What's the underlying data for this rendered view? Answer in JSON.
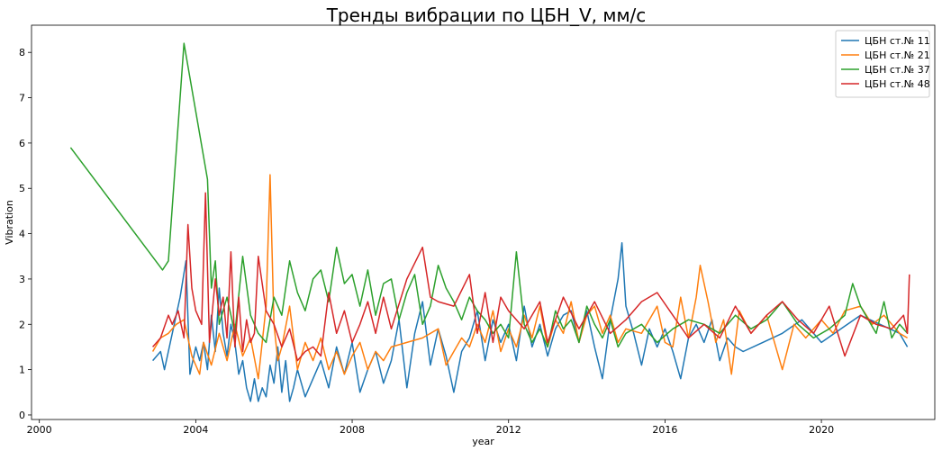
{
  "chart_data": {
    "type": "line",
    "title": "Тренды вибрации по ЦБН_V, мм/с",
    "xlabel": "year",
    "ylabel": "Vibration",
    "xlim": [
      1999.8,
      2022.9
    ],
    "ylim": [
      -0.1,
      8.6
    ],
    "xticks": [
      2000,
      2004,
      2008,
      2012,
      2016,
      2020
    ],
    "yticks": [
      0,
      1,
      2,
      3,
      4,
      5,
      6,
      7,
      8
    ],
    "grid": false,
    "legend_position": "top-right",
    "series": [
      {
        "name": "ЦБН ст.№ 11",
        "color": "#1f77b4",
        "x": [
          2002.9,
          2003.1,
          2003.2,
          2003.4,
          2003.6,
          2003.75,
          2003.85,
          2004.0,
          2004.1,
          2004.2,
          2004.3,
          2004.4,
          2004.5,
          2004.6,
          2004.7,
          2004.8,
          2004.9,
          2005.0,
          2005.1,
          2005.2,
          2005.3,
          2005.4,
          2005.5,
          2005.6,
          2005.7,
          2005.8,
          2005.9,
          2006.0,
          2006.1,
          2006.2,
          2006.3,
          2006.4,
          2006.5,
          2006.6,
          2006.8,
          2007.0,
          2007.2,
          2007.4,
          2007.6,
          2007.8,
          2008.0,
          2008.2,
          2008.4,
          2008.6,
          2008.8,
          2009.0,
          2009.2,
          2009.4,
          2009.6,
          2009.8,
          2010.0,
          2010.2,
          2010.4,
          2010.6,
          2010.8,
          2011.0,
          2011.2,
          2011.4,
          2011.6,
          2011.8,
          2012.0,
          2012.2,
          2012.4,
          2012.6,
          2012.8,
          2013.0,
          2013.2,
          2013.4,
          2013.6,
          2013.8,
          2014.0,
          2014.2,
          2014.4,
          2014.6,
          2014.8,
          2014.9,
          2015.0,
          2015.2,
          2015.4,
          2015.6,
          2015.8,
          2016.0,
          2016.2,
          2016.4,
          2016.6,
          2016.8,
          2017.0,
          2017.2,
          2017.4,
          2017.6,
          2017.8,
          2018.0,
          2018.5,
          2019.0,
          2019.5,
          2020.0,
          2020.5,
          2021.0,
          2021.5,
          2022.0,
          2022.2
        ],
        "y": [
          1.2,
          1.4,
          1.0,
          1.8,
          2.6,
          3.4,
          0.9,
          1.5,
          1.2,
          1.6,
          1.0,
          2.2,
          1.4,
          2.8,
          1.8,
          1.3,
          2.0,
          1.6,
          0.9,
          1.2,
          0.6,
          0.3,
          0.8,
          0.3,
          0.6,
          0.4,
          1.1,
          0.7,
          1.5,
          0.5,
          1.2,
          0.3,
          0.6,
          1.0,
          0.4,
          0.8,
          1.2,
          0.6,
          1.5,
          0.9,
          1.6,
          0.5,
          1.0,
          1.4,
          0.7,
          1.2,
          2.1,
          0.6,
          1.8,
          2.5,
          1.1,
          1.9,
          1.3,
          0.5,
          1.4,
          1.7,
          2.3,
          1.2,
          2.1,
          1.6,
          2.0,
          1.2,
          2.4,
          1.5,
          2.0,
          1.3,
          1.9,
          2.2,
          2.3,
          1.6,
          2.3,
          1.5,
          0.8,
          2.1,
          3.0,
          3.8,
          2.4,
          1.8,
          1.1,
          1.9,
          1.5,
          1.9,
          1.4,
          0.8,
          1.7,
          2.0,
          1.6,
          2.1,
          1.2,
          1.7,
          1.5,
          1.4,
          1.6,
          1.8,
          2.1,
          1.6,
          1.9,
          2.2,
          2.0,
          1.8,
          1.5
        ]
      },
      {
        "name": "ЦБН ст.№ 21",
        "color": "#ff7f0e",
        "x": [
          2002.9,
          2003.1,
          2003.3,
          2003.5,
          2003.7,
          2003.9,
          2004.1,
          2004.2,
          2004.4,
          2004.6,
          2004.8,
          2005.0,
          2005.2,
          2005.4,
          2005.6,
          2005.8,
          2005.9,
          2006.0,
          2006.1,
          2006.2,
          2006.4,
          2006.6,
          2006.8,
          2007.0,
          2007.2,
          2007.4,
          2007.6,
          2007.8,
          2008.0,
          2008.2,
          2008.4,
          2008.6,
          2008.8,
          2009.0,
          2009.4,
          2009.8,
          2010.2,
          2010.4,
          2010.6,
          2010.8,
          2011.0,
          2011.2,
          2011.4,
          2011.6,
          2011.8,
          2012.0,
          2012.2,
          2012.4,
          2012.6,
          2012.8,
          2013.0,
          2013.2,
          2013.4,
          2013.6,
          2013.8,
          2014.0,
          2014.2,
          2014.4,
          2014.6,
          2014.8,
          2015.0,
          2015.4,
          2015.8,
          2016.0,
          2016.2,
          2016.4,
          2016.6,
          2016.8,
          2016.9,
          2017.1,
          2017.3,
          2017.5,
          2017.7,
          2017.9,
          2018.2,
          2018.6,
          2019.0,
          2019.3,
          2019.6,
          2020.0,
          2020.3,
          2020.6,
          2021.0,
          2021.3,
          2021.6,
          2022.0,
          2022.2
        ],
        "y": [
          1.4,
          1.7,
          1.8,
          2.0,
          2.1,
          1.3,
          0.9,
          1.6,
          1.1,
          1.8,
          1.2,
          2.0,
          1.3,
          1.7,
          0.8,
          2.4,
          5.3,
          2.0,
          1.2,
          1.5,
          2.4,
          1.0,
          1.6,
          1.2,
          1.7,
          1.0,
          1.4,
          0.9,
          1.3,
          1.6,
          1.0,
          1.4,
          1.2,
          1.5,
          1.6,
          1.7,
          1.9,
          1.1,
          1.4,
          1.7,
          1.5,
          2.0,
          1.6,
          2.3,
          1.4,
          1.9,
          1.5,
          2.2,
          1.7,
          2.4,
          1.5,
          2.1,
          1.8,
          2.5,
          1.6,
          2.2,
          2.4,
          1.8,
          2.2,
          1.6,
          1.9,
          1.8,
          2.4,
          1.6,
          1.5,
          2.6,
          1.7,
          2.6,
          3.3,
          2.5,
          1.6,
          2.1,
          0.9,
          2.3,
          1.8,
          2.2,
          1.0,
          2.0,
          1.7,
          2.1,
          1.8,
          2.3,
          2.4,
          2.0,
          2.2,
          1.8,
          1.7
        ]
      },
      {
        "name": "ЦБН ст.№ 37",
        "color": "#2ca02c",
        "x": [
          2000.8,
          2003.15,
          2003.3,
          2003.7,
          2004.3,
          2004.4,
          2004.5,
          2004.6,
          2004.8,
          2005.0,
          2005.2,
          2005.4,
          2005.6,
          2005.8,
          2006.0,
          2006.2,
          2006.4,
          2006.6,
          2006.8,
          2007.0,
          2007.2,
          2007.4,
          2007.6,
          2007.8,
          2008.0,
          2008.2,
          2008.4,
          2008.6,
          2008.8,
          2009.0,
          2009.2,
          2009.4,
          2009.6,
          2009.8,
          2010.0,
          2010.2,
          2010.4,
          2010.6,
          2010.8,
          2011.0,
          2011.2,
          2011.4,
          2011.6,
          2011.8,
          2012.0,
          2012.2,
          2012.4,
          2012.6,
          2012.8,
          2013.0,
          2013.2,
          2013.4,
          2013.6,
          2013.8,
          2014.0,
          2014.2,
          2014.4,
          2014.6,
          2014.8,
          2015.0,
          2015.4,
          2015.8,
          2016.2,
          2016.6,
          2017.0,
          2017.4,
          2017.8,
          2018.2,
          2018.6,
          2019.0,
          2019.4,
          2019.8,
          2020.2,
          2020.6,
          2020.8,
          2021.0,
          2021.2,
          2021.4,
          2021.6,
          2021.8,
          2022.0,
          2022.2
        ],
        "y": [
          5.9,
          3.2,
          3.4,
          8.2,
          5.2,
          2.8,
          3.4,
          2.0,
          2.6,
          1.8,
          3.5,
          2.2,
          1.8,
          1.6,
          2.6,
          2.2,
          3.4,
          2.7,
          2.3,
          3.0,
          3.2,
          2.5,
          3.7,
          2.9,
          3.1,
          2.4,
          3.2,
          2.2,
          2.9,
          3.0,
          2.1,
          2.7,
          3.1,
          2.0,
          2.4,
          3.3,
          2.8,
          2.5,
          2.1,
          2.6,
          2.3,
          2.1,
          1.8,
          2.0,
          1.7,
          3.6,
          2.0,
          1.6,
          1.9,
          1.5,
          2.3,
          1.9,
          2.1,
          1.6,
          2.4,
          2.0,
          1.7,
          2.1,
          1.5,
          1.8,
          2.0,
          1.6,
          1.9,
          2.1,
          2.0,
          1.8,
          2.2,
          1.9,
          2.1,
          2.5,
          2.0,
          1.7,
          1.9,
          2.2,
          2.9,
          2.4,
          2.1,
          1.8,
          2.5,
          1.7,
          2.0,
          1.8
        ]
      },
      {
        "name": "ЦБН ст.№ 48",
        "color": "#d62728",
        "x": [
          2002.9,
          2003.1,
          2003.3,
          2003.4,
          2003.55,
          2003.7,
          2003.8,
          2003.9,
          2004.0,
          2004.15,
          2004.25,
          2004.35,
          2004.5,
          2004.6,
          2004.7,
          2004.8,
          2004.9,
          2005.0,
          2005.1,
          2005.2,
          2005.3,
          2005.4,
          2005.5,
          2005.6,
          2005.8,
          2006.0,
          2006.2,
          2006.4,
          2006.6,
          2006.8,
          2007.0,
          2007.2,
          2007.4,
          2007.6,
          2007.8,
          2008.0,
          2008.2,
          2008.4,
          2008.6,
          2008.8,
          2009.0,
          2009.4,
          2009.8,
          2010.0,
          2010.2,
          2010.6,
          2011.0,
          2011.2,
          2011.4,
          2011.6,
          2011.8,
          2012.0,
          2012.4,
          2012.8,
          2013.0,
          2013.4,
          2013.8,
          2014.2,
          2014.6,
          2015.0,
          2015.4,
          2015.8,
          2016.2,
          2016.6,
          2017.0,
          2017.4,
          2017.8,
          2018.2,
          2018.6,
          2019.0,
          2019.4,
          2019.8,
          2020.2,
          2020.6,
          2021.0,
          2021.4,
          2021.8,
          2022.0,
          2022.1,
          2022.2,
          2022.25
        ],
        "y": [
          1.5,
          1.7,
          2.2,
          2.0,
          2.3,
          1.7,
          4.2,
          2.8,
          2.3,
          2.0,
          4.9,
          1.6,
          3.0,
          2.2,
          2.6,
          1.7,
          3.6,
          1.5,
          2.6,
          1.4,
          2.1,
          1.6,
          1.8,
          3.5,
          2.3,
          2.0,
          1.5,
          1.9,
          1.2,
          1.4,
          1.5,
          1.3,
          2.7,
          1.8,
          2.3,
          1.6,
          2.0,
          2.5,
          1.8,
          2.6,
          1.9,
          3.0,
          3.7,
          2.6,
          2.5,
          2.4,
          3.1,
          1.8,
          2.7,
          1.6,
          2.6,
          2.3,
          1.9,
          2.5,
          1.6,
          2.6,
          1.9,
          2.5,
          1.8,
          2.1,
          2.5,
          2.7,
          2.2,
          1.7,
          2.0,
          1.7,
          2.4,
          1.8,
          2.2,
          2.5,
          2.1,
          1.8,
          2.4,
          1.3,
          2.2,
          2.0,
          1.9,
          2.1,
          2.2,
          1.8,
          3.1
        ]
      }
    ]
  }
}
